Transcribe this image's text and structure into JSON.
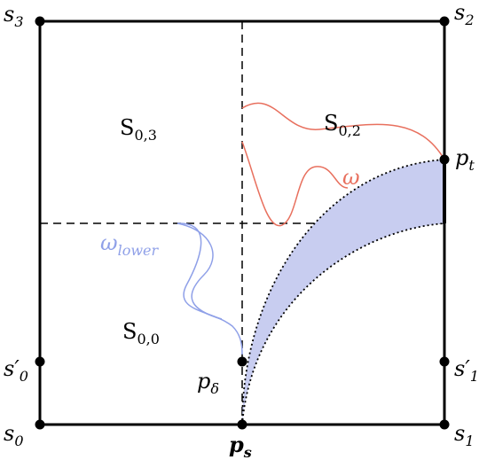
{
  "labels": [
    {
      "text": "s",
      "sub": "3"
    },
    {
      "text": "s",
      "sub": "2"
    },
    {
      "text": "p",
      "sub": "t"
    },
    {
      "text": "S",
      "sub": "0,3"
    },
    {
      "text": "S",
      "sub": "0,2"
    },
    {
      "text": "ω"
    },
    {
      "text": "ω",
      "sub": "lower"
    },
    {
      "text": "S",
      "sub": "0,0"
    },
    {
      "text": "s′",
      "sub": "0"
    },
    {
      "text": "s′",
      "sub": "1"
    },
    {
      "text": "p",
      "sub": "δ"
    },
    {
      "text": "s",
      "sub": "0"
    },
    {
      "text": "p",
      "sub": "s"
    },
    {
      "text": "s",
      "sub": "1"
    }
  ]
}
